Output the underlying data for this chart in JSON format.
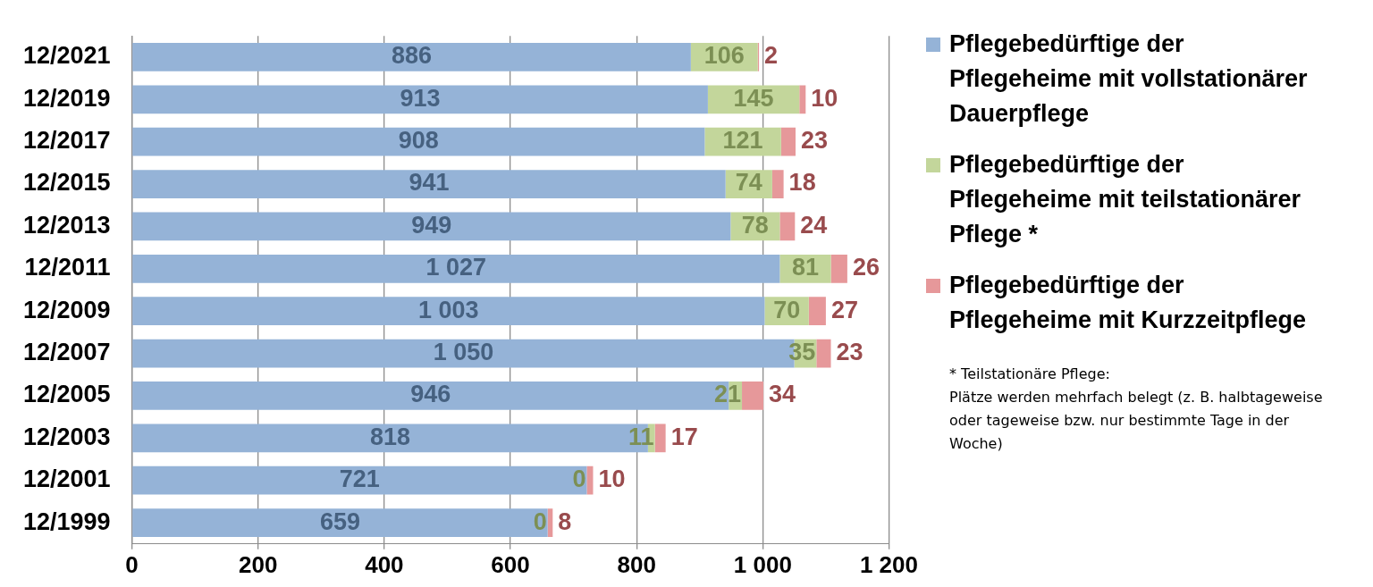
{
  "chart_data": {
    "type": "bar",
    "orientation": "horizontal",
    "stacked": true,
    "categories": [
      "12/2021",
      "12/2019",
      "12/2017",
      "12/2015",
      "12/2013",
      "12/2011",
      "12/2009",
      "12/2007",
      "12/2005",
      "12/2003",
      "12/2001",
      "12/1999"
    ],
    "series": [
      {
        "name": "Pflegebedürftige der Pflegeheime mit vollstationärer Dauerpflege",
        "color": "#95b3d7",
        "values": [
          886,
          913,
          908,
          941,
          949,
          1027,
          1003,
          1050,
          946,
          818,
          721,
          659
        ],
        "value_labels": [
          "886",
          "913",
          "908",
          "941",
          "949",
          "1 027",
          "1 003",
          "1 050",
          "946",
          "818",
          "721",
          "659"
        ]
      },
      {
        "name": "Pflegebedürftige der Pflegeheime mit teilstationärer Pflege *",
        "color": "#c3d69b",
        "values": [
          106,
          145,
          121,
          74,
          78,
          81,
          70,
          35,
          21,
          11,
          0,
          0
        ],
        "value_labels": [
          "106",
          "145",
          "121",
          "74",
          "78",
          "81",
          "70",
          "35",
          "21",
          "11",
          "0",
          "0"
        ]
      },
      {
        "name": "Pflegebedürftige der Pflegeheime mit Kurzzeitpflege",
        "color": "#e6989a",
        "values": [
          2,
          10,
          23,
          18,
          24,
          26,
          27,
          23,
          34,
          17,
          10,
          8
        ],
        "value_labels": [
          "2",
          "10",
          "23",
          "18",
          "24",
          "26",
          "27",
          "23",
          "34",
          "17",
          "10",
          "8"
        ]
      }
    ],
    "xlim": [
      0,
      1200
    ],
    "xticks": [
      0,
      200,
      400,
      600,
      800,
      {
        "value": 1000,
        "label": "1 000"
      },
      {
        "value": 1200,
        "label": "1 200"
      }
    ],
    "grid": "x",
    "legend": "right",
    "annotations": [
      "* Teilstationäre Pflege:\nPlätze werden mehrfach belegt (z. B. halbtageweise oder tageweise bzw. nur bestimmte Tage in der Woche)"
    ]
  }
}
